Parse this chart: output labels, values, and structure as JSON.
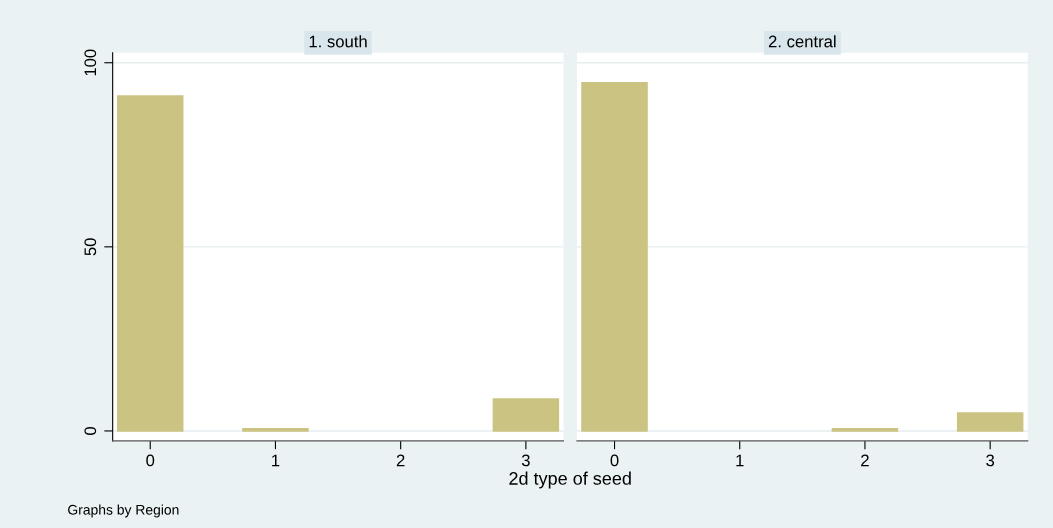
{
  "chart_data": [
    {
      "type": "bar",
      "title": "1. south",
      "xlabel": "2d type of seed",
      "annotations": [
        "Graphs by Region"
      ],
      "x": [
        0,
        1,
        2,
        3
      ],
      "values": [
        91,
        0.6,
        null,
        8.7
      ],
      "color": "#cbc382",
      "xlim": [
        -0.3,
        3.3
      ],
      "xticks": [
        0,
        1,
        2,
        3
      ],
      "ylim": [
        -2.7,
        102.7
      ],
      "yticks": [
        0,
        50,
        100
      ],
      "grid": "y"
    },
    {
      "type": "bar",
      "title": "2. central",
      "x": [
        0,
        1,
        2,
        3
      ],
      "values": [
        94.6,
        null,
        0.6,
        4.9
      ],
      "color": "#cbc382",
      "xlim": [
        -0.3,
        3.3
      ],
      "xticks": [
        0,
        1,
        2,
        3
      ],
      "ylim": [
        -2.7,
        102.7
      ],
      "yticks": [
        0,
        50,
        100
      ],
      "grid": "y",
      "tick_labels": "x"
    }
  ]
}
